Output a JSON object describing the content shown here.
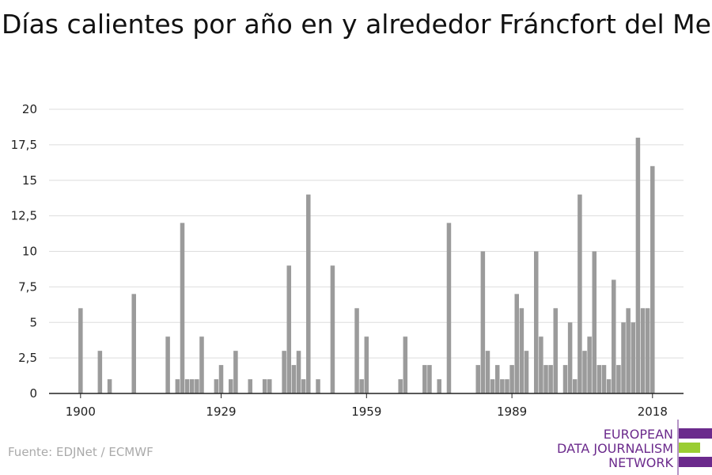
{
  "chart_data": {
    "type": "bar",
    "title": "Días calientes por año en y alrededor Fráncfort del Meno",
    "x": [
      1900,
      1904,
      1906,
      1911,
      1918,
      1920,
      1921,
      1922,
      1923,
      1924,
      1925,
      1928,
      1929,
      1931,
      1932,
      1935,
      1938,
      1939,
      1942,
      1943,
      1944,
      1945,
      1946,
      1947,
      1949,
      1952,
      1957,
      1958,
      1959,
      1966,
      1967,
      1971,
      1972,
      1974,
      1976,
      1982,
      1983,
      1984,
      1985,
      1986,
      1987,
      1988,
      1989,
      1990,
      1991,
      1992,
      1994,
      1995,
      1996,
      1997,
      1998,
      2000,
      2001,
      2002,
      2003,
      2004,
      2005,
      2006,
      2007,
      2008,
      2009,
      2010,
      2011,
      2012,
      2013,
      2014,
      2015,
      2016,
      2017,
      2018
    ],
    "values": [
      6,
      3,
      1,
      7,
      4,
      1,
      12,
      1,
      1,
      1,
      4,
      1,
      2,
      1,
      3,
      1,
      1,
      1,
      3,
      9,
      2,
      3,
      1,
      14,
      1,
      9,
      6,
      1,
      4,
      1,
      4,
      2,
      2,
      1,
      12,
      2,
      10,
      3,
      1,
      2,
      1,
      1,
      2,
      7,
      6,
      3,
      10,
      4,
      2,
      2,
      6,
      2,
      5,
      1,
      14,
      3,
      4,
      10,
      2,
      2,
      1,
      8,
      2,
      5,
      6,
      5,
      18,
      6,
      6,
      16
    ],
    "color": "#9b9b9b",
    "xlim": [
      1893.5,
      2024.4
    ],
    "xticks": [
      1900,
      1929,
      1959,
      1989,
      2018
    ],
    "ylim": [
      0,
      20
    ],
    "yticks": [
      0,
      {
        "value": 2.5,
        "label": "2,5"
      },
      5,
      {
        "value": 7.5,
        "label": "7,5"
      },
      10,
      {
        "value": 12.5,
        "label": "12,5"
      },
      15,
      {
        "value": 17.5,
        "label": "17,5"
      },
      20
    ],
    "grid": true,
    "source": "Fuente: EDJNet / ECMWF",
    "logo": [
      "EUROPEAN",
      "DATA JOURNALISM",
      "NETWORK"
    ]
  }
}
